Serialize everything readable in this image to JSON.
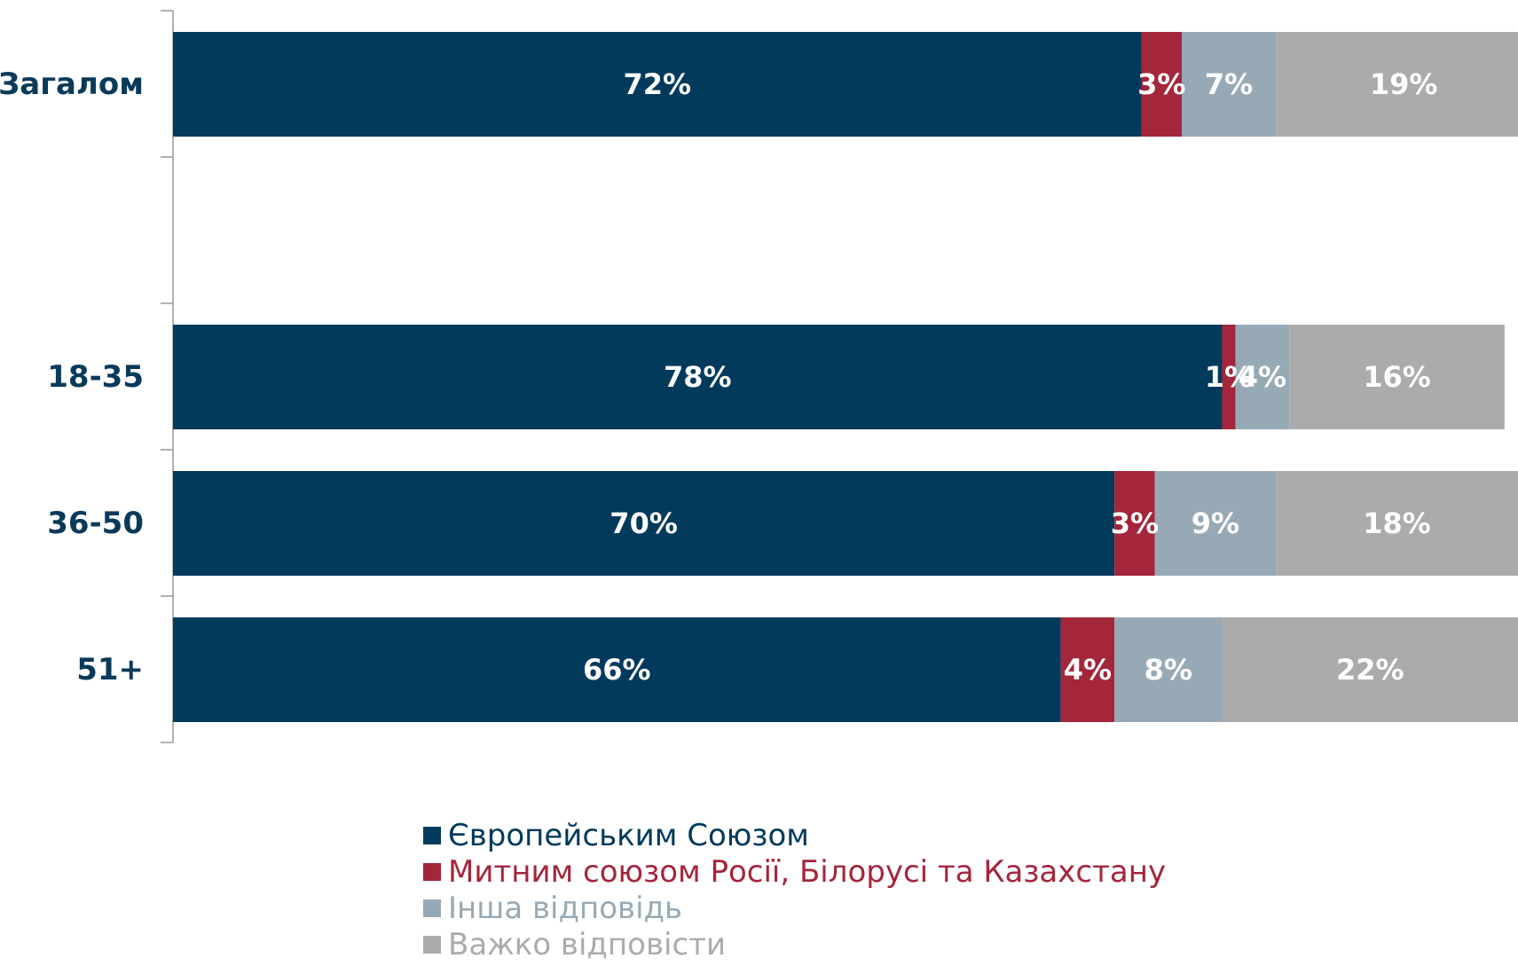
{
  "chart_data": {
    "type": "bar",
    "orientation": "horizontal",
    "stacked": true,
    "categories": [
      "Загалом",
      "",
      "18-35",
      "36-50",
      "51+"
    ],
    "series": [
      {
        "name": "Європейським Союзом",
        "color": "#023a5c",
        "values": [
          72,
          null,
          78,
          70,
          66
        ],
        "labels": [
          "72%",
          "",
          "78%",
          "70%",
          "66%"
        ]
      },
      {
        "name": "Митним союзом Росії, Білорусі та Казахстану",
        "color": "#a3263b",
        "values": [
          3,
          null,
          1,
          3,
          4
        ],
        "labels": [
          "3%",
          "",
          "1%",
          "3%",
          "4%"
        ]
      },
      {
        "name": "Інша відповідь",
        "color": "#98a9b6",
        "values": [
          7,
          null,
          4,
          9,
          8
        ],
        "labels": [
          "7%",
          "",
          "4%",
          "9%",
          "8%"
        ]
      },
      {
        "name": "Важко відповісти",
        "color": "#ababab",
        "values": [
          19,
          null,
          16,
          18,
          22
        ],
        "labels": [
          "19%",
          "",
          "16%",
          "18%",
          "22%"
        ]
      }
    ],
    "legend_position": "bottom-center",
    "grid": false,
    "colors": {
      "category_label": "#0a3a5a",
      "data_label": "#ffffff",
      "axis": "#999999"
    }
  }
}
